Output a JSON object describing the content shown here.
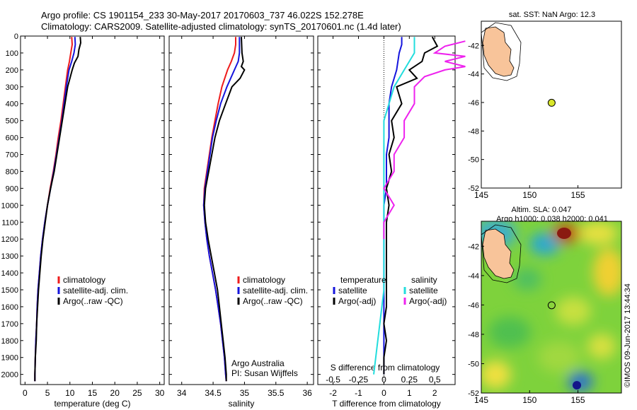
{
  "header": {
    "line1": "Argo profile: CS 1901154_233 30-May-2017 20170603_737 46.022S 152.278E",
    "line2": "Climatology: CARS2009. Satellite-adjusted climatology: synTS_20170601.nc (1.4d later)"
  },
  "credit": "©IMOS 09-Jun-2017 13:44:34",
  "colors": {
    "climatology": "#ee1c1c",
    "satellite": "#1515dd",
    "argo": "#000000",
    "sal_satellite": "#22dddd",
    "sal_argo": "#ee22ee",
    "land": "#f8c49a"
  },
  "chart_data": [
    {
      "type": "line",
      "name": "temperature",
      "xlabel": "temperature (deg C)",
      "ylabel": "",
      "xlim": [
        -1,
        31
      ],
      "ylim": [
        2060,
        0
      ],
      "xticks": [
        0,
        5,
        10,
        15,
        20,
        25,
        30
      ],
      "yticks": [
        0,
        100,
        200,
        300,
        400,
        500,
        600,
        700,
        800,
        900,
        1000,
        1100,
        1200,
        1300,
        1400,
        1500,
        1600,
        1700,
        1800,
        1900,
        2000
      ],
      "legend": [
        "climatology",
        "satellite-adj. clim.",
        "Argo(..raw -QC)"
      ],
      "series": [
        {
          "name": "climatology",
          "color": "#ee1c1c",
          "points": [
            [
              10.4,
              5
            ],
            [
              10.5,
              50
            ],
            [
              10.2,
              100
            ],
            [
              9.9,
              150
            ],
            [
              9.5,
              200
            ],
            [
              9.0,
              300
            ],
            [
              8.5,
              400
            ],
            [
              8.0,
              500
            ],
            [
              7.4,
              600
            ],
            [
              6.9,
              700
            ],
            [
              6.3,
              800
            ],
            [
              5.6,
              900
            ],
            [
              5.0,
              1000
            ],
            [
              4.4,
              1100
            ],
            [
              3.9,
              1200
            ],
            [
              3.5,
              1300
            ],
            [
              3.2,
              1400
            ],
            [
              2.9,
              1500
            ],
            [
              2.7,
              1600
            ],
            [
              2.6,
              1700
            ],
            [
              2.4,
              1800
            ],
            [
              2.3,
              1900
            ],
            [
              2.2,
              2000
            ],
            [
              2.2,
              2040
            ]
          ]
        },
        {
          "name": "satellite-adj. clim.",
          "color": "#1515dd",
          "points": [
            [
              11.1,
              5
            ],
            [
              11.2,
              50
            ],
            [
              10.9,
              100
            ],
            [
              10.4,
              150
            ],
            [
              9.8,
              200
            ],
            [
              9.2,
              300
            ],
            [
              8.7,
              400
            ],
            [
              8.2,
              500
            ],
            [
              7.6,
              600
            ],
            [
              7.0,
              700
            ],
            [
              6.4,
              800
            ],
            [
              5.7,
              900
            ],
            [
              5.0,
              1000
            ],
            [
              4.4,
              1100
            ],
            [
              3.9,
              1200
            ],
            [
              3.5,
              1300
            ],
            [
              3.2,
              1400
            ],
            [
              2.9,
              1500
            ],
            [
              2.7,
              1600
            ],
            [
              2.6,
              1700
            ],
            [
              2.4,
              1800
            ],
            [
              2.3,
              1900
            ],
            [
              2.2,
              2000
            ],
            [
              2.2,
              2040
            ]
          ]
        },
        {
          "name": "Argo(..raw -QC)",
          "color": "#000000",
          "points": [
            [
              12.3,
              5
            ],
            [
              12.4,
              40
            ],
            [
              12.0,
              80
            ],
            [
              11.8,
              120
            ],
            [
              11.0,
              160
            ],
            [
              10.5,
              200
            ],
            [
              9.5,
              300
            ],
            [
              8.9,
              400
            ],
            [
              8.3,
              500
            ],
            [
              7.7,
              600
            ],
            [
              7.1,
              700
            ],
            [
              6.5,
              800
            ],
            [
              5.7,
              900
            ],
            [
              5.0,
              1000
            ],
            [
              4.5,
              1100
            ],
            [
              4.0,
              1200
            ],
            [
              3.6,
              1300
            ],
            [
              3.3,
              1400
            ],
            [
              3.0,
              1500
            ],
            [
              2.8,
              1600
            ],
            [
              2.6,
              1700
            ],
            [
              2.5,
              1800
            ],
            [
              2.3,
              1900
            ],
            [
              2.2,
              2000
            ],
            [
              2.2,
              2040
            ]
          ]
        }
      ]
    },
    {
      "type": "line",
      "name": "salinity",
      "xlabel": "salinity",
      "ylabel": "",
      "xlim": [
        33.8,
        36.1
      ],
      "ylim": [
        2060,
        0
      ],
      "xticks": [
        34,
        34.5,
        35,
        35.5,
        36
      ],
      "xticklabels": [
        "34",
        "34.5",
        "35",
        "35.5",
        "36"
      ],
      "legend": [
        "climatology",
        "satellite-adj. clim.",
        "Argo(..raw -QC)"
      ],
      "annotation": [
        "Argo Australia",
        "PI: Susan Wijffels"
      ],
      "series": [
        {
          "name": "climatology",
          "color": "#ee1c1c",
          "points": [
            [
              34.86,
              5
            ],
            [
              34.86,
              50
            ],
            [
              34.84,
              100
            ],
            [
              34.79,
              150
            ],
            [
              34.73,
              200
            ],
            [
              34.64,
              300
            ],
            [
              34.58,
              400
            ],
            [
              34.53,
              500
            ],
            [
              34.48,
              600
            ],
            [
              34.44,
              700
            ],
            [
              34.4,
              800
            ],
            [
              34.36,
              900
            ],
            [
              34.35,
              1000
            ],
            [
              34.37,
              1100
            ],
            [
              34.4,
              1200
            ],
            [
              34.44,
              1300
            ],
            [
              34.49,
              1400
            ],
            [
              34.54,
              1500
            ],
            [
              34.58,
              1600
            ],
            [
              34.62,
              1700
            ],
            [
              34.65,
              1800
            ],
            [
              34.68,
              1900
            ],
            [
              34.7,
              2000
            ],
            [
              34.71,
              2040
            ]
          ]
        },
        {
          "name": "satellite-adj. clim.",
          "color": "#1515dd",
          "points": [
            [
              34.92,
              5
            ],
            [
              34.92,
              100
            ],
            [
              34.9,
              150
            ],
            [
              34.84,
              200
            ],
            [
              34.72,
              300
            ],
            [
              34.62,
              400
            ],
            [
              34.55,
              500
            ],
            [
              34.49,
              600
            ],
            [
              34.45,
              700
            ],
            [
              34.41,
              800
            ],
            [
              34.37,
              900
            ],
            [
              34.35,
              1000
            ],
            [
              34.37,
              1100
            ],
            [
              34.4,
              1200
            ],
            [
              34.44,
              1300
            ],
            [
              34.49,
              1400
            ],
            [
              34.54,
              1500
            ],
            [
              34.58,
              1600
            ],
            [
              34.62,
              1700
            ],
            [
              34.65,
              1800
            ],
            [
              34.68,
              1900
            ],
            [
              34.7,
              2000
            ],
            [
              34.71,
              2040
            ]
          ]
        },
        {
          "name": "Argo(..raw -QC)",
          "color": "#000000",
          "points": [
            [
              34.95,
              5
            ],
            [
              34.96,
              100
            ],
            [
              34.98,
              150
            ],
            [
              34.95,
              180
            ],
            [
              35.0,
              200
            ],
            [
              34.93,
              250
            ],
            [
              34.8,
              300
            ],
            [
              34.7,
              400
            ],
            [
              34.6,
              500
            ],
            [
              34.53,
              600
            ],
            [
              34.48,
              700
            ],
            [
              34.43,
              800
            ],
            [
              34.38,
              900
            ],
            [
              34.36,
              1000
            ],
            [
              34.38,
              1100
            ],
            [
              34.42,
              1200
            ],
            [
              34.47,
              1300
            ],
            [
              34.52,
              1400
            ],
            [
              34.57,
              1500
            ],
            [
              34.6,
              1600
            ],
            [
              34.63,
              1700
            ],
            [
              34.66,
              1800
            ],
            [
              34.69,
              1900
            ],
            [
              34.71,
              2000
            ],
            [
              34.71,
              2040
            ]
          ]
        }
      ]
    },
    {
      "type": "line",
      "name": "difference",
      "xlabel": "T difference from climatology",
      "xlabel2": "S difference from climatology",
      "xlim": [
        -2.6,
        2.8
      ],
      "ylim": [
        2060,
        0
      ],
      "xticks": [
        -2,
        -1,
        0,
        1,
        2
      ],
      "xticklabels": [
        "-2",
        "-1",
        "0",
        "1",
        "2"
      ],
      "xticks2": [
        -0.5,
        -0.25,
        0,
        0.25,
        0.5
      ],
      "xticklabels2": [
        "-0.5",
        "-0.25",
        "0",
        "0.25",
        "0.5"
      ],
      "legend_titles": [
        "temperature",
        "salinity"
      ],
      "legend": [
        "satellite",
        "Argo(-adj)",
        "satellite",
        "Argo(-adj)"
      ],
      "series": [
        {
          "name": "satellite",
          "group": "temperature",
          "color": "#1515dd",
          "points": [
            [
              0.7,
              5
            ],
            [
              0.7,
              50
            ],
            [
              0.6,
              100
            ],
            [
              0.5,
              200
            ],
            [
              0.3,
              300
            ],
            [
              0.2,
              400
            ],
            [
              0.2,
              500
            ],
            [
              0.2,
              600
            ],
            [
              0.1,
              700
            ],
            [
              0.1,
              800
            ],
            [
              0.1,
              900
            ],
            [
              0.0,
              1000
            ],
            [
              0.0,
              1100
            ],
            [
              0.0,
              1200
            ],
            [
              0.0,
              1300
            ],
            [
              0.0,
              1400
            ],
            [
              0.0,
              1500
            ],
            [
              0.0,
              1600
            ],
            [
              0.0,
              1700
            ],
            [
              0.0,
              1800
            ],
            [
              0.0,
              1900
            ],
            [
              0.0,
              2000
            ]
          ]
        },
        {
          "name": "Argo(-adj)",
          "group": "temperature",
          "color": "#000000",
          "points": [
            [
              1.9,
              5
            ],
            [
              2.1,
              60
            ],
            [
              1.6,
              100
            ],
            [
              1.5,
              150
            ],
            [
              1.0,
              200
            ],
            [
              1.3,
              250
            ],
            [
              0.5,
              300
            ],
            [
              0.7,
              400
            ],
            [
              0.3,
              500
            ],
            [
              0.4,
              600
            ],
            [
              0.2,
              700
            ],
            [
              0.3,
              800
            ],
            [
              0.1,
              900
            ],
            [
              0.2,
              1000
            ],
            [
              0.1,
              1100
            ],
            [
              0.1,
              1200
            ],
            [
              0.1,
              1300
            ],
            [
              0.1,
              1400
            ],
            [
              0.1,
              1500
            ],
            [
              0.1,
              1600
            ],
            [
              0.0,
              1700
            ],
            [
              0.1,
              1800
            ],
            [
              0.0,
              1900
            ],
            [
              0.0,
              2000
            ]
          ]
        },
        {
          "name": "satellite",
          "group": "salinity",
          "color": "#22dddd",
          "points": [
            [
              0.3,
              5
            ],
            [
              0.3,
              100
            ],
            [
              0.2,
              200
            ],
            [
              0.1,
              300
            ],
            [
              0.0,
              500
            ],
            [
              0.0,
              1000
            ],
            [
              0.0,
              1500
            ],
            [
              -0.1,
              2000
            ]
          ]
        },
        {
          "name": "Argo(-adj)",
          "group": "salinity",
          "color": "#ee22ee",
          "points": [
            [
              0.8,
              30
            ],
            [
              0.6,
              60
            ],
            [
              0.5,
              100
            ],
            [
              0.8,
              120
            ],
            [
              0.6,
              150
            ],
            [
              0.8,
              180
            ],
            [
              0.6,
              200
            ],
            [
              0.4,
              240
            ],
            [
              0.3,
              300
            ],
            [
              0.3,
              400
            ],
            [
              0.2,
              500
            ],
            [
              0.2,
              600
            ],
            [
              0.1,
              700
            ],
            [
              0.1,
              800
            ],
            [
              0.0,
              900
            ],
            [
              0.1,
              1000
            ],
            [
              0.0,
              1100
            ],
            [
              0.0,
              1200
            ]
          ]
        }
      ]
    },
    {
      "type": "map",
      "name": "sst-map",
      "title": "sat. SST: NaN Argo: 12.3",
      "xlim": [
        145,
        159.5
      ],
      "ylim": [
        -52,
        -40.3
      ],
      "xticks": [
        145,
        150,
        155
      ],
      "yticks": [
        -42,
        -44,
        -46,
        -48,
        -50,
        -52
      ],
      "float_position": [
        152.278,
        -46.022
      ]
    },
    {
      "type": "map",
      "name": "sla-map",
      "title": [
        "Altim. SLA: 0.047",
        "Argo h1000: 0.038 h2000: 0.041"
      ],
      "xlim": [
        145,
        159.5
      ],
      "ylim": [
        -52,
        -40.3
      ],
      "xticks": [
        145,
        150,
        155
      ],
      "yticks": [
        -42,
        -44,
        -46,
        -48,
        -50,
        -52
      ],
      "float_position": [
        152.278,
        -46.022
      ]
    }
  ]
}
